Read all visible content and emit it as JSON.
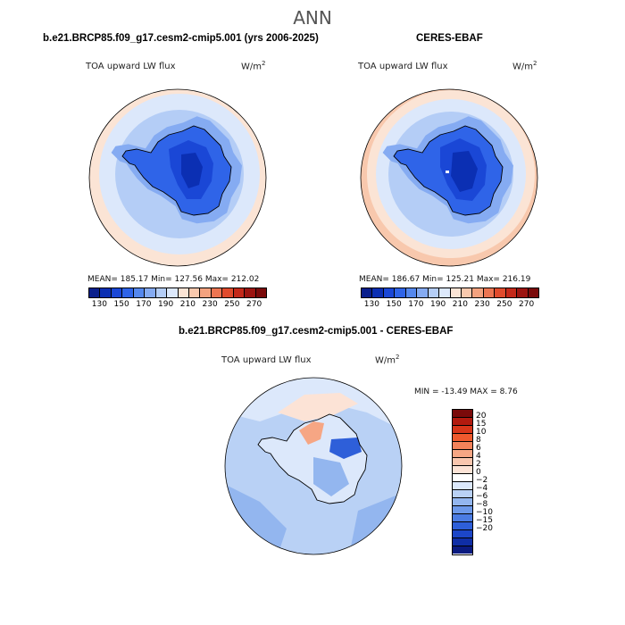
{
  "main_title": "ANN",
  "panel1": {
    "title": "b.e21.BRCP85.f09_g17.cesm2-cmip5.001 (yrs 2006-2025)",
    "var_label": "TOA upward LW flux",
    "unit_base": "W/m",
    "unit_exp": "2",
    "stats": "MEAN= 185.17   Min= 127.56   Max= 212.02"
  },
  "panel2": {
    "title": "CERES-EBAF",
    "var_label": "TOA upward LW flux",
    "unit_base": "W/m",
    "unit_exp": "2",
    "stats": "MEAN= 186.67   Min= 125.21   Max= 216.19"
  },
  "panel3": {
    "title": "b.e21.BRCP85.f09_g17.cesm2-cmip5.001 - CERES-EBAF",
    "var_label": "TOA upward LW flux",
    "unit_base": "W/m",
    "unit_exp": "2",
    "minmax": "MIN = -13.49 MAX =   8.76"
  },
  "colorbar_abs": {
    "colors": [
      "#0a1f8c",
      "#0b2fb3",
      "#1a47d6",
      "#2f64e8",
      "#5588ee",
      "#85abf2",
      "#b4cdf6",
      "#dce8fb",
      "#fbe4d5",
      "#f8c8ad",
      "#f3a27f",
      "#ec7552",
      "#e04b2d",
      "#c4291a",
      "#9c1410",
      "#7a0a0a"
    ],
    "ticks": [
      "130",
      "150",
      "170",
      "190",
      "210",
      "230",
      "250",
      "270"
    ]
  },
  "colorbar_diff": {
    "colors": [
      "#7a0a0a",
      "#b21a0f",
      "#d8361a",
      "#ef5a2e",
      "#f3825a",
      "#f6a684",
      "#f9c6ae",
      "#fce3d6",
      "#ffffff",
      "#dce8fb",
      "#b9d1f5",
      "#93b6ef",
      "#6d99ea",
      "#4b7ce3",
      "#2e5fd9",
      "#1c46c8",
      "#0f2ea6",
      "#0a1a80"
    ],
    "ticks": [
      "20",
      "15",
      "10",
      "8",
      "6",
      "4",
      "2",
      "0",
      "−2",
      "−4",
      "−6",
      "−8",
      "−10",
      "−15",
      "−20"
    ]
  },
  "chart_data": [
    {
      "type": "heatmap",
      "title": "b.e21.BRCP85.f09_g17.cesm2-cmip5.001 (yrs 2006-2025)",
      "projection": "south polar stereographic",
      "variable": "TOA upward LW flux",
      "units": "W/m2",
      "mean": 185.17,
      "min": 127.56,
      "max": 212.02,
      "color_levels": [
        130,
        150,
        170,
        190,
        210,
        230,
        250,
        270
      ]
    },
    {
      "type": "heatmap",
      "title": "CERES-EBAF",
      "projection": "south polar stereographic",
      "variable": "TOA upward LW flux",
      "units": "W/m2",
      "mean": 186.67,
      "min": 125.21,
      "max": 216.19,
      "color_levels": [
        130,
        150,
        170,
        190,
        210,
        230,
        250,
        270
      ]
    },
    {
      "type": "heatmap",
      "title": "b.e21.BRCP85.f09_g17.cesm2-cmip5.001 - CERES-EBAF",
      "projection": "south polar stereographic",
      "variable": "TOA upward LW flux",
      "units": "W/m2",
      "min": -13.49,
      "max": 8.76,
      "color_levels": [
        20,
        15,
        10,
        8,
        6,
        4,
        2,
        0,
        -2,
        -4,
        -6,
        -8,
        -10,
        -15,
        -20
      ]
    }
  ]
}
